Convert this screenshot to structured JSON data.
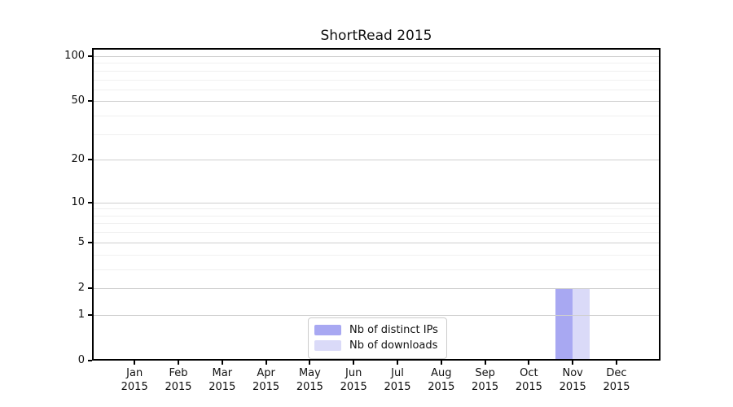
{
  "title": "ShortRead 2015",
  "chart_data": {
    "type": "bar",
    "title": "ShortRead 2015",
    "categories": [
      "Jan",
      "Feb",
      "Mar",
      "Apr",
      "May",
      "Jun",
      "Jul",
      "Aug",
      "Sep",
      "Oct",
      "Nov",
      "Dec"
    ],
    "category_year": "2015",
    "series": [
      {
        "name": "Nb of distinct IPs",
        "color": "#a8a8f2",
        "values": [
          0,
          0,
          0,
          0,
          0,
          0,
          0,
          0,
          0,
          0,
          2,
          0
        ]
      },
      {
        "name": "Nb of downloads",
        "color": "#dadaf8",
        "values": [
          0,
          0,
          0,
          0,
          0,
          0,
          0,
          0,
          0,
          0,
          2,
          0
        ]
      }
    ],
    "xlabel": "",
    "ylabel": "",
    "yscale": "log1p",
    "ylim": [
      0,
      113
    ],
    "y_major_ticks": [
      0,
      1,
      2,
      5,
      10,
      20,
      50,
      100
    ],
    "y_minor_gridlines": [
      3,
      4,
      6,
      7,
      8,
      9,
      30,
      40,
      60,
      70,
      80,
      90
    ],
    "grid": "horizontal",
    "legend_position": "bottom-center-inside"
  },
  "colors": {
    "background": "#ffffff",
    "axis": "#000000",
    "major_grid": "#cfcfcf",
    "minor_grid": "#f0f0f0",
    "legend_border": "#cccccc",
    "text": "#111111"
  }
}
